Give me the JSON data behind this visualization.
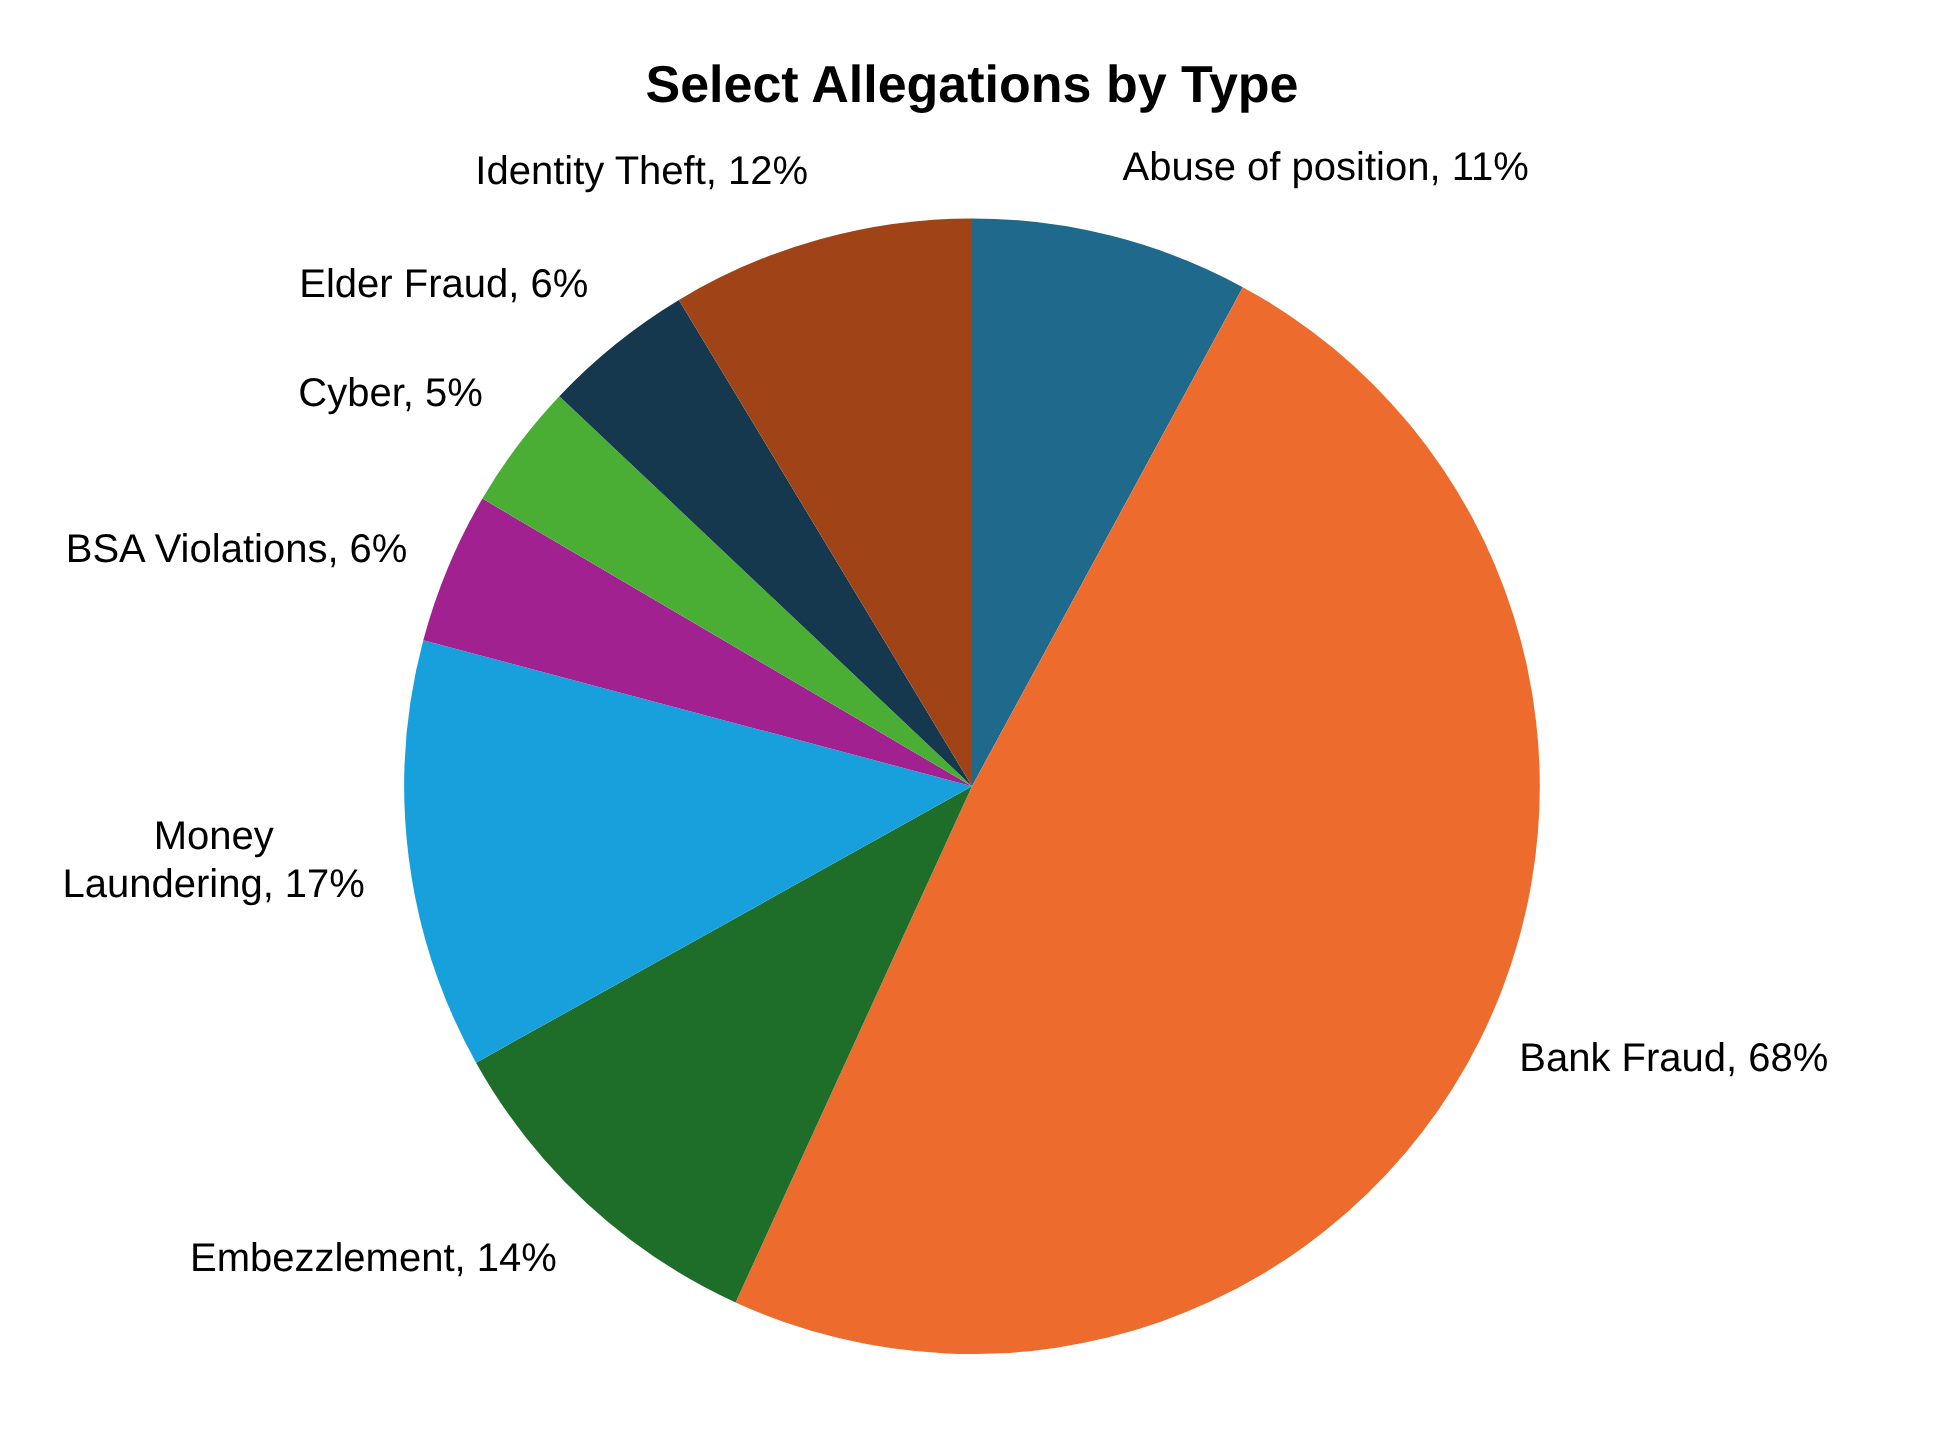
{
  "chart_data": {
    "type": "pie",
    "title": "Select Allegations by Type",
    "categories": [
      "Abuse of position",
      "Bank Fraud",
      "Embezzlement",
      "Money Laundering",
      "BSA Violations",
      "Cyber",
      "Elder Fraud",
      "Identity Theft"
    ],
    "values": [
      11,
      68,
      14,
      17,
      6,
      5,
      6,
      12
    ],
    "value_labels": [
      "11%",
      "68%",
      "14%",
      "17%",
      "6%",
      "5%",
      "6%",
      "12%"
    ],
    "colors": [
      "#1f6a8c",
      "#ec6b2d",
      "#1e6e2a",
      "#17a0dc",
      "#a0218f",
      "#4aae35",
      "#15384f",
      "#a04418"
    ],
    "legend": false
  }
}
